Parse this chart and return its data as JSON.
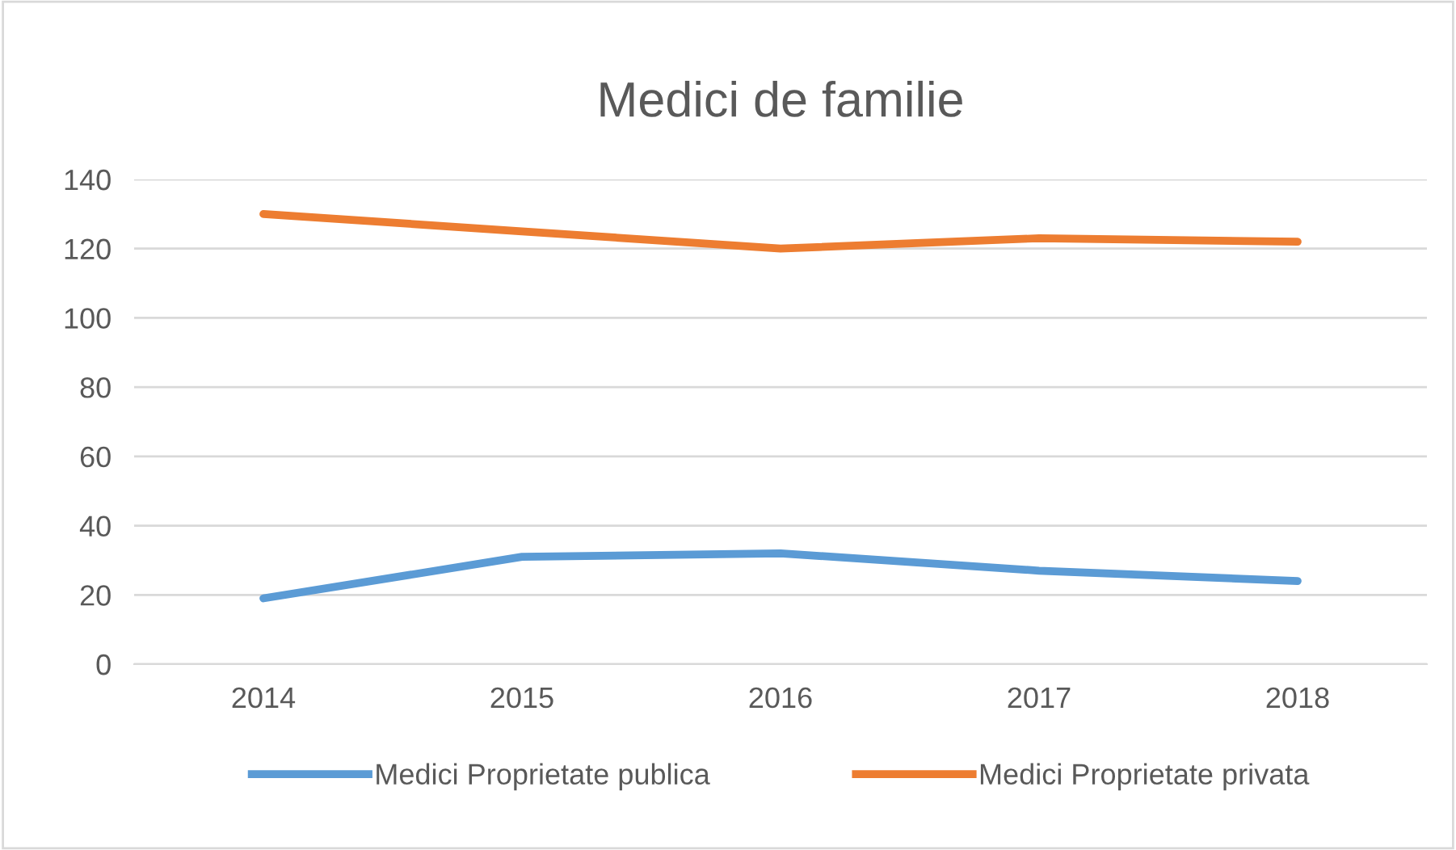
{
  "chart_data": {
    "type": "line",
    "title": "Medici de familie",
    "categories": [
      "2014",
      "2015",
      "2016",
      "2017",
      "2018"
    ],
    "series": [
      {
        "name": "Medici Proprietate publica",
        "color": "#5b9bd5",
        "values": [
          19,
          31,
          32,
          27,
          24
        ]
      },
      {
        "name": "Medici Proprietate privata",
        "color": "#ed7d31",
        "values": [
          130,
          125,
          120,
          123,
          122
        ]
      }
    ],
    "ylim": [
      0,
      140
    ],
    "yticks": [
      0,
      20,
      40,
      60,
      80,
      100,
      120,
      140
    ],
    "grid": "y",
    "legend": "bottom",
    "marker": "none",
    "line_style": "solid"
  }
}
